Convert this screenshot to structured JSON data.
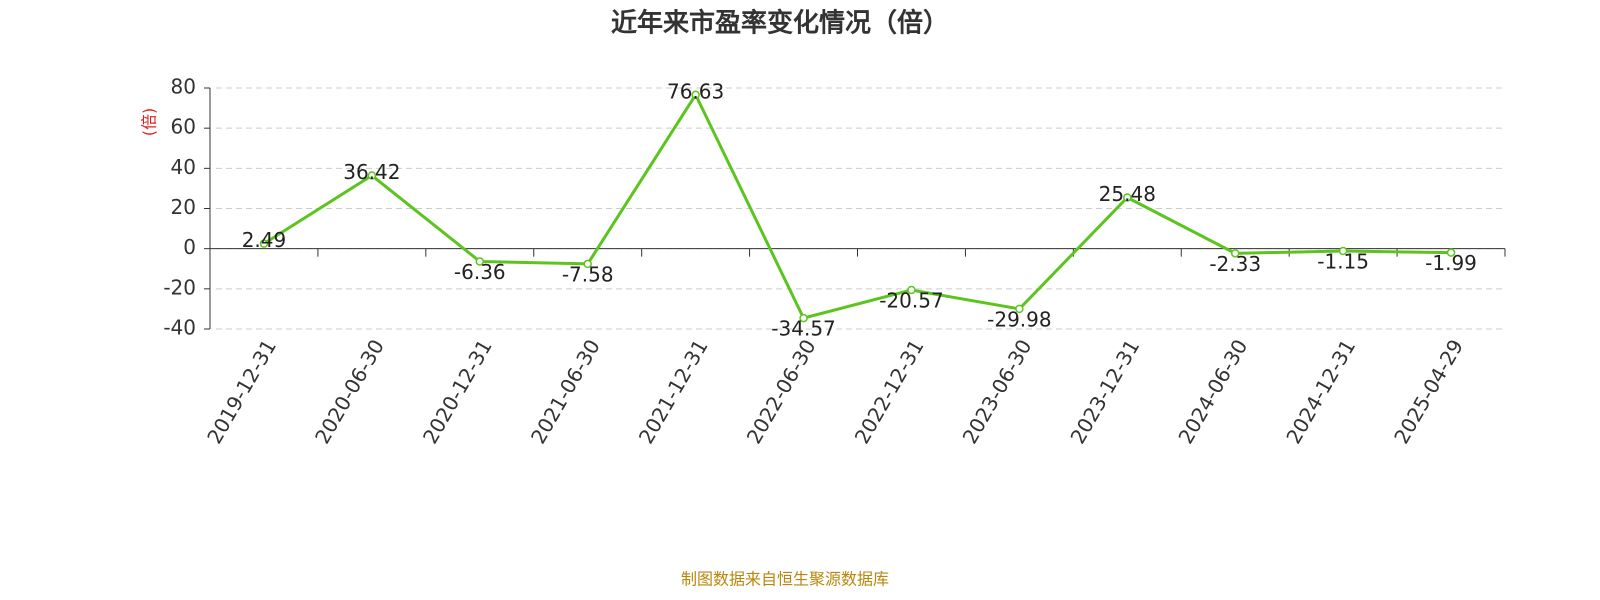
{
  "chart_data": {
    "type": "line",
    "title": "近年来市盈率变化情况（倍）",
    "y_label": "(倍)",
    "footer": "制图数据来自恒生聚源数据库",
    "categories": [
      "2019-12-31",
      "2020-06-30",
      "2020-12-31",
      "2021-06-30",
      "2021-12-31",
      "2022-06-30",
      "2022-12-31",
      "2023-06-30",
      "2023-12-31",
      "2024-06-30",
      "2024-12-31",
      "2025-04-29"
    ],
    "series": [
      {
        "name": "市盈率",
        "color": "#5cc41e",
        "values": [
          2.49,
          36.42,
          -6.36,
          -7.58,
          76.63,
          -34.57,
          -20.57,
          -29.98,
          25.48,
          -2.33,
          -1.15,
          -1.99
        ]
      }
    ],
    "ylim": [
      -40,
      80
    ],
    "yticks": [
      -40,
      -20,
      0,
      20,
      40,
      60,
      80
    ],
    "grid": true
  }
}
